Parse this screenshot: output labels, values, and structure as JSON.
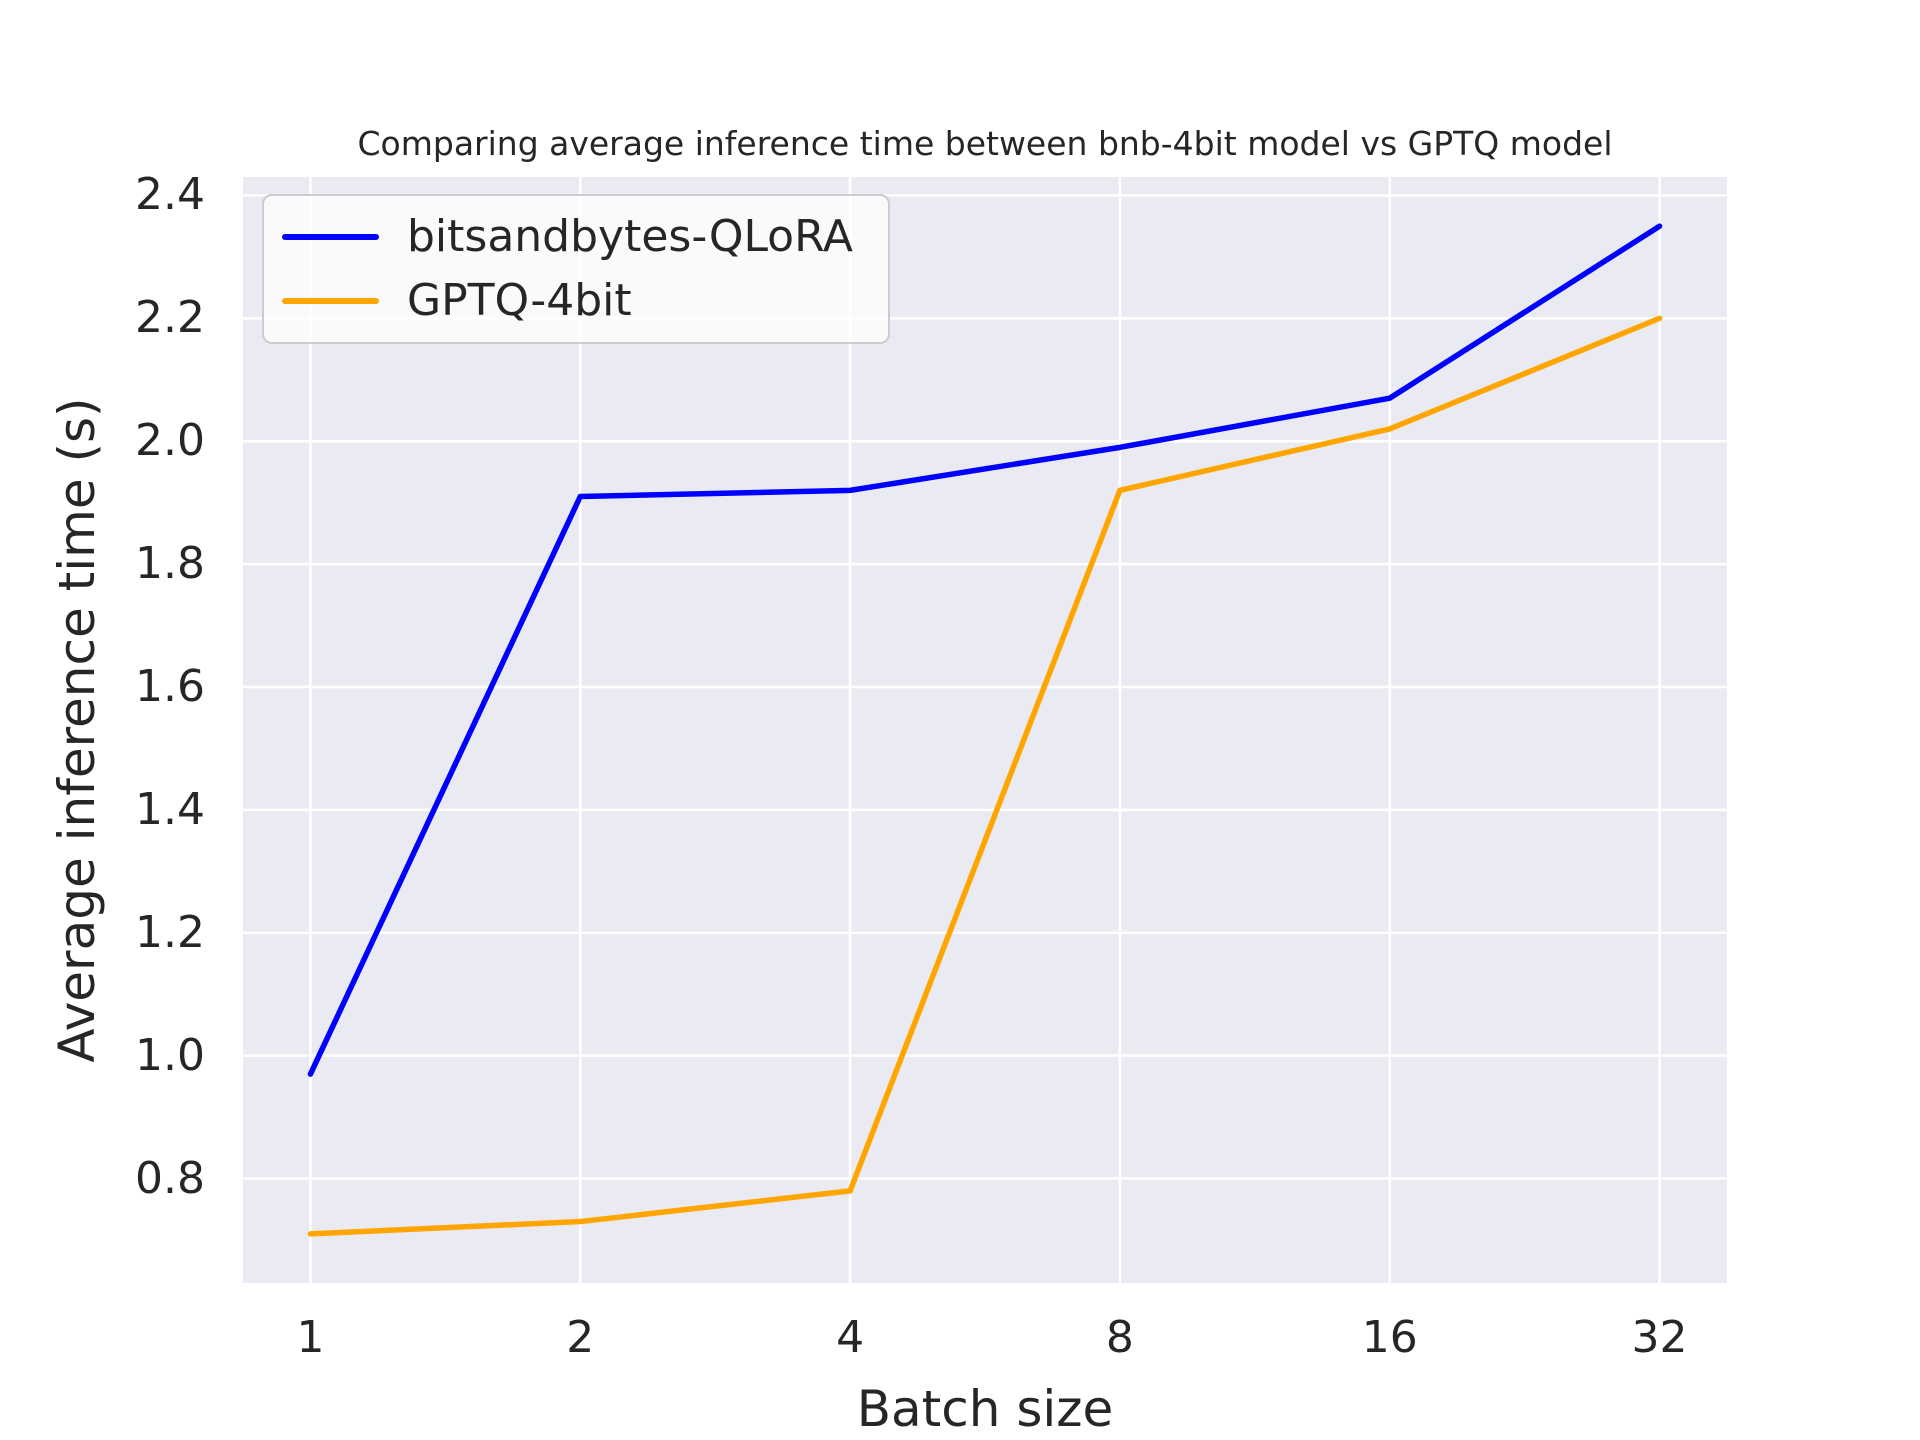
{
  "chart_data": {
    "type": "line",
    "title": "Comparing average inference time between bnb-4bit model vs GPTQ model",
    "xlabel": "Batch size",
    "ylabel": "Average inference time (s)",
    "x_scale": "log2",
    "categories": [
      1,
      2,
      4,
      8,
      16,
      32
    ],
    "series": [
      {
        "name": "bitsandbytes-QLoRA",
        "color": "#0000ff",
        "values": [
          0.97,
          1.91,
          1.92,
          1.99,
          2.07,
          2.35
        ]
      },
      {
        "name": "GPTQ-4bit",
        "color": "#ffa500",
        "values": [
          0.71,
          0.73,
          0.78,
          1.92,
          2.02,
          2.2
        ]
      }
    ],
    "yticks": [
      0.8,
      1.0,
      1.2,
      1.4,
      1.6,
      1.8,
      2.0,
      2.2,
      2.4
    ],
    "ylim": [
      0.63,
      2.43
    ],
    "grid": true,
    "legend_position": "upper left",
    "plot_background": "#eaeaf2",
    "grid_color": "#ffffff",
    "text_color": "#262626",
    "line_width": 5.5
  }
}
